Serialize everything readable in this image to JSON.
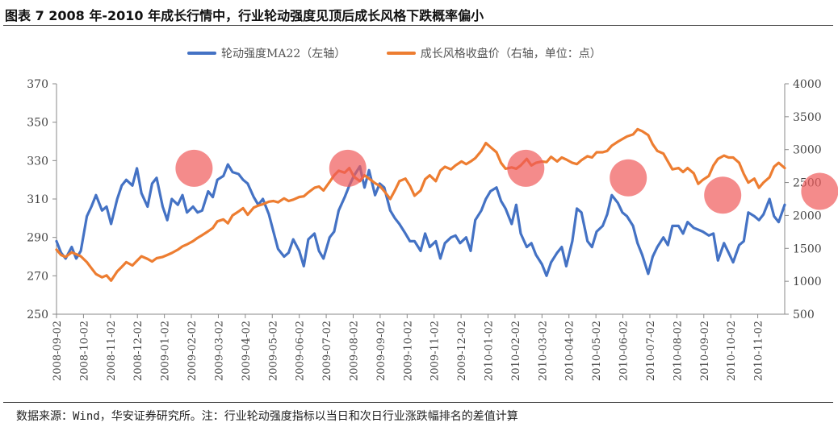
{
  "title": "图表 7 2008 年-2010 年成长行情中，行业轮动强度见顶后成长风格下跌概率偏小",
  "source": "数据来源：Wind，华安证券研究所。注：行业轮动强度指标以当日和次日行业涨跌幅排名的差值计算",
  "colors": {
    "blue": "#4472C4",
    "orange": "#ED7D31",
    "highlight": "#F05A5A"
  },
  "chart_data": {
    "type": "line",
    "x_tick_labels": [
      "2008-09-02",
      "2008-10-02",
      "2008-11-02",
      "2008-12-02",
      "2009-01-02",
      "2009-02-02",
      "2009-03-02",
      "2009-04-02",
      "2009-05-02",
      "2009-06-02",
      "2009-07-02",
      "2009-08-02",
      "2009-09-02",
      "2009-10-02",
      "2009-11-02",
      "2009-12-02",
      "2010-01-02",
      "2010-02-02",
      "2010-03-02",
      "2010-04-02",
      "2010-05-02",
      "2010-06-02",
      "2010-07-02",
      "2010-08-02",
      "2010-09-02",
      "2010-10-02",
      "2010-11-02"
    ],
    "y_left": {
      "min": 250,
      "max": 370,
      "ticks": [
        250,
        270,
        290,
        310,
        330,
        350,
        370
      ]
    },
    "y_right": {
      "min": 500,
      "max": 4000,
      "ticks": [
        500,
        1000,
        1500,
        2000,
        2500,
        3000,
        3500,
        4000
      ]
    },
    "series": [
      {
        "name": "轮动强度MA22（左轴）",
        "axis": "left",
        "color": "#4472C4",
        "points": [
          [
            0,
            288
          ],
          [
            0.3,
            282
          ],
          [
            0.6,
            279
          ],
          [
            1,
            285
          ],
          [
            1.3,
            279
          ],
          [
            1.6,
            283
          ],
          [
            2,
            301
          ],
          [
            2.3,
            306
          ],
          [
            2.6,
            312
          ],
          [
            3,
            304
          ],
          [
            3.3,
            306
          ],
          [
            3.6,
            297
          ],
          [
            4,
            310
          ],
          [
            4.3,
            317
          ],
          [
            4.6,
            320
          ],
          [
            5,
            317
          ],
          [
            5.3,
            326
          ],
          [
            5.6,
            313
          ],
          [
            6,
            306
          ],
          [
            6.3,
            318
          ],
          [
            6.6,
            321
          ],
          [
            7,
            306
          ],
          [
            7.3,
            299
          ],
          [
            7.6,
            310
          ],
          [
            8,
            307
          ],
          [
            8.3,
            312
          ],
          [
            8.6,
            303
          ],
          [
            9,
            306
          ],
          [
            9.3,
            303
          ],
          [
            9.6,
            304
          ],
          [
            10,
            314
          ],
          [
            10.3,
            311
          ],
          [
            10.6,
            320
          ],
          [
            11,
            322
          ],
          [
            11.3,
            328
          ],
          [
            11.6,
            324
          ],
          [
            12,
            323
          ],
          [
            12.3,
            320
          ],
          [
            12.6,
            318
          ],
          [
            13,
            311
          ],
          [
            13.3,
            307
          ],
          [
            13.6,
            310
          ],
          [
            14,
            302
          ],
          [
            14.3,
            293
          ],
          [
            14.6,
            284
          ],
          [
            15,
            280
          ],
          [
            15.3,
            282
          ],
          [
            15.6,
            289
          ],
          [
            16,
            283
          ],
          [
            16.3,
            275
          ],
          [
            16.6,
            289
          ],
          [
            17,
            292
          ],
          [
            17.3,
            283
          ],
          [
            17.6,
            279
          ],
          [
            18,
            290
          ],
          [
            18.3,
            293
          ],
          [
            18.6,
            304
          ],
          [
            19,
            311
          ],
          [
            19.3,
            317
          ],
          [
            19.6,
            322
          ],
          [
            20,
            327
          ],
          [
            20.3,
            316
          ],
          [
            20.6,
            325
          ],
          [
            21,
            312
          ],
          [
            21.3,
            318
          ],
          [
            21.6,
            316
          ],
          [
            22,
            304
          ],
          [
            22.3,
            300
          ],
          [
            22.6,
            297
          ],
          [
            23,
            292
          ],
          [
            23.3,
            288
          ],
          [
            23.6,
            288
          ],
          [
            24,
            283
          ],
          [
            24.3,
            292
          ],
          [
            24.6,
            285
          ],
          [
            25,
            288
          ],
          [
            25.3,
            279
          ],
          [
            25.6,
            287
          ],
          [
            26,
            290
          ],
          [
            26.3,
            291
          ],
          [
            26.6,
            287
          ],
          [
            27,
            290
          ],
          [
            27.3,
            283
          ],
          [
            27.6,
            299
          ],
          [
            28,
            304
          ],
          [
            28.3,
            310
          ],
          [
            28.6,
            314
          ],
          [
            29,
            316
          ],
          [
            29.3,
            309
          ],
          [
            29.6,
            305
          ],
          [
            30,
            297
          ],
          [
            30.3,
            307
          ],
          [
            30.6,
            292
          ],
          [
            31,
            285
          ],
          [
            31.3,
            287
          ],
          [
            31.6,
            281
          ],
          [
            32,
            276
          ],
          [
            32.3,
            270
          ],
          [
            32.6,
            277
          ],
          [
            33,
            282
          ],
          [
            33.3,
            285
          ],
          [
            33.6,
            275
          ],
          [
            34,
            288
          ],
          [
            34.3,
            305
          ],
          [
            34.6,
            303
          ],
          [
            35,
            288
          ],
          [
            35.3,
            285
          ],
          [
            35.6,
            293
          ],
          [
            36,
            296
          ],
          [
            36.3,
            302
          ],
          [
            36.6,
            312
          ],
          [
            37,
            308
          ],
          [
            37.3,
            303
          ],
          [
            37.6,
            301
          ],
          [
            38,
            296
          ],
          [
            38.3,
            287
          ],
          [
            38.6,
            281
          ],
          [
            39,
            271
          ],
          [
            39.3,
            280
          ],
          [
            39.6,
            285
          ],
          [
            40,
            290
          ],
          [
            40.3,
            286
          ],
          [
            40.6,
            296
          ],
          [
            41,
            296
          ],
          [
            41.3,
            292
          ],
          [
            41.6,
            298
          ],
          [
            42,
            295
          ],
          [
            42.3,
            294
          ],
          [
            42.6,
            293
          ],
          [
            43,
            291
          ],
          [
            43.3,
            292
          ],
          [
            43.6,
            278
          ],
          [
            44,
            287
          ],
          [
            44.3,
            282
          ],
          [
            44.6,
            277
          ],
          [
            45,
            286
          ],
          [
            45.3,
            288
          ],
          [
            45.6,
            303
          ],
          [
            46,
            301
          ],
          [
            46.3,
            299
          ],
          [
            46.6,
            302
          ],
          [
            47,
            310
          ],
          [
            47.3,
            301
          ],
          [
            47.6,
            298
          ],
          [
            48,
            307
          ]
        ]
      },
      {
        "name": "成长风格收盘价（右轴，单位：点）",
        "axis": "right",
        "color": "#ED7D31",
        "points": [
          [
            0,
            1480
          ],
          [
            0.3,
            1400
          ],
          [
            0.6,
            1370
          ],
          [
            1,
            1440
          ],
          [
            1.3,
            1410
          ],
          [
            1.6,
            1380
          ],
          [
            2,
            1290
          ],
          [
            2.3,
            1200
          ],
          [
            2.6,
            1110
          ],
          [
            3,
            1060
          ],
          [
            3.3,
            1090
          ],
          [
            3.6,
            1010
          ],
          [
            4,
            1150
          ],
          [
            4.3,
            1220
          ],
          [
            4.6,
            1290
          ],
          [
            5,
            1240
          ],
          [
            5.3,
            1310
          ],
          [
            5.6,
            1380
          ],
          [
            6,
            1340
          ],
          [
            6.3,
            1300
          ],
          [
            6.6,
            1350
          ],
          [
            7,
            1370
          ],
          [
            7.3,
            1400
          ],
          [
            7.6,
            1430
          ],
          [
            8,
            1480
          ],
          [
            8.3,
            1530
          ],
          [
            8.6,
            1560
          ],
          [
            9,
            1610
          ],
          [
            9.3,
            1660
          ],
          [
            9.6,
            1700
          ],
          [
            10,
            1760
          ],
          [
            10.3,
            1810
          ],
          [
            10.6,
            1910
          ],
          [
            11,
            1940
          ],
          [
            11.3,
            1880
          ],
          [
            11.6,
            2000
          ],
          [
            12,
            2060
          ],
          [
            12.3,
            2110
          ],
          [
            12.6,
            2010
          ],
          [
            13,
            2120
          ],
          [
            13.3,
            2150
          ],
          [
            13.6,
            2170
          ],
          [
            14,
            2210
          ],
          [
            14.3,
            2220
          ],
          [
            14.6,
            2200
          ],
          [
            15,
            2260
          ],
          [
            15.3,
            2220
          ],
          [
            15.6,
            2240
          ],
          [
            16,
            2280
          ],
          [
            16.3,
            2290
          ],
          [
            16.6,
            2350
          ],
          [
            17,
            2420
          ],
          [
            17.3,
            2440
          ],
          [
            17.6,
            2380
          ],
          [
            18,
            2510
          ],
          [
            18.3,
            2610
          ],
          [
            18.6,
            2680
          ],
          [
            19,
            2650
          ],
          [
            19.3,
            2720
          ],
          [
            19.6,
            2590
          ],
          [
            20,
            2520
          ],
          [
            20.3,
            2610
          ],
          [
            20.6,
            2560
          ],
          [
            21,
            2490
          ],
          [
            21.3,
            2450
          ],
          [
            21.6,
            2370
          ],
          [
            22,
            2250
          ],
          [
            22.3,
            2380
          ],
          [
            22.6,
            2520
          ],
          [
            23,
            2560
          ],
          [
            23.3,
            2450
          ],
          [
            23.6,
            2300
          ],
          [
            24,
            2380
          ],
          [
            24.3,
            2550
          ],
          [
            24.6,
            2610
          ],
          [
            25,
            2520
          ],
          [
            25.3,
            2680
          ],
          [
            25.6,
            2740
          ],
          [
            26,
            2700
          ],
          [
            26.3,
            2760
          ],
          [
            26.7,
            2820
          ],
          [
            27,
            2780
          ],
          [
            27.3,
            2820
          ],
          [
            27.6,
            2870
          ],
          [
            28,
            2980
          ],
          [
            28.3,
            3100
          ],
          [
            28.6,
            3040
          ],
          [
            29,
            2960
          ],
          [
            29.3,
            2800
          ],
          [
            29.6,
            2710
          ],
          [
            30,
            2730
          ],
          [
            30.3,
            2710
          ],
          [
            30.6,
            2760
          ],
          [
            31,
            2860
          ],
          [
            31.3,
            2760
          ],
          [
            31.6,
            2800
          ],
          [
            32,
            2820
          ],
          [
            32.3,
            2810
          ],
          [
            32.6,
            2890
          ],
          [
            33,
            2820
          ],
          [
            33.3,
            2880
          ],
          [
            33.6,
            2850
          ],
          [
            34,
            2800
          ],
          [
            34.3,
            2780
          ],
          [
            34.6,
            2840
          ],
          [
            35,
            2900
          ],
          [
            35.3,
            2880
          ],
          [
            35.6,
            2960
          ],
          [
            36,
            2960
          ],
          [
            36.3,
            2980
          ],
          [
            36.6,
            3060
          ],
          [
            37,
            3120
          ],
          [
            37.3,
            3160
          ],
          [
            37.6,
            3200
          ],
          [
            38,
            3230
          ],
          [
            38.3,
            3310
          ],
          [
            38.6,
            3280
          ],
          [
            39,
            3220
          ],
          [
            39.3,
            3080
          ],
          [
            39.6,
            2980
          ],
          [
            40,
            2940
          ],
          [
            40.3,
            2820
          ],
          [
            40.6,
            2700
          ],
          [
            41,
            2720
          ],
          [
            41.3,
            2660
          ],
          [
            41.6,
            2720
          ],
          [
            42,
            2640
          ],
          [
            42.3,
            2480
          ],
          [
            42.6,
            2540
          ],
          [
            43,
            2600
          ],
          [
            43.3,
            2760
          ],
          [
            43.6,
            2860
          ],
          [
            44,
            2910
          ],
          [
            44.3,
            2880
          ],
          [
            44.6,
            2880
          ],
          [
            45,
            2800
          ],
          [
            45.3,
            2630
          ],
          [
            45.6,
            2500
          ],
          [
            46,
            2560
          ],
          [
            46.3,
            2420
          ],
          [
            46.6,
            2500
          ],
          [
            47,
            2580
          ],
          [
            47.3,
            2740
          ],
          [
            47.6,
            2800
          ],
          [
            48,
            2720
          ]
        ]
      }
    ],
    "highlights": [
      {
        "x": 5.1,
        "y": 326
      },
      {
        "x": 10.8,
        "y": 326
      },
      {
        "x": 17.4,
        "y": 326
      },
      {
        "x": 21.2,
        "y": 321
      },
      {
        "x": 24.7,
        "y": 312
      },
      {
        "x": 28.3,
        "y": 314
      }
    ],
    "grid": false,
    "legend": "top"
  }
}
